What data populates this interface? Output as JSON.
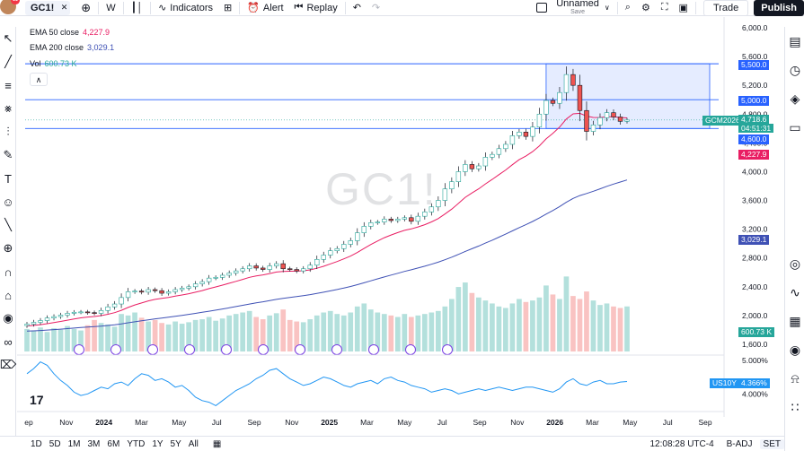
{
  "topbar": {
    "symbol": "GC1!",
    "avatar_badge": "11",
    "interval": "W",
    "indicators_label": "Indicators",
    "alert_label": "Alert",
    "replay_label": "Replay",
    "layout_name": "Unnamed",
    "layout_status": "Save",
    "trade_label": "Trade",
    "publish_label": "Publish"
  },
  "legend": {
    "ema50_label": "EMA 50 close",
    "ema50_value": "4,227.9",
    "ema200_label": "EMA 200 close",
    "ema200_value": "3,029.1",
    "vol_label": "Vol",
    "vol_value": "600.73 K"
  },
  "watermark": "GC1!",
  "tv_logo": "17",
  "colors": {
    "up": "#26a69a",
    "down": "#ef5350",
    "ema50": "#e91e63",
    "ema200": "#3f51b5",
    "hline": "#2962ff",
    "zone": "rgba(41,98,255,0.12)",
    "us10y": "#2196f3"
  },
  "chart_data": {
    "type": "candlestick",
    "x_labels": [
      "ep",
      "Nov",
      "2024",
      "Mar",
      "May",
      "Jul",
      "Sep",
      "Nov",
      "2025",
      "Mar",
      "May",
      "Jul",
      "Sep",
      "Nov",
      "2026",
      "Mar",
      "May",
      "Jul",
      "Sep"
    ],
    "y_ticks": [
      "6,000.0",
      "5,600.0",
      "5,200.0",
      "4,800.0",
      "4,400.0",
      "4,000.0",
      "3,600.0",
      "3,200.0",
      "2,800.0",
      "2,400.0",
      "2,000.0",
      "1,600.0"
    ],
    "y_ticks_values": [
      6000,
      5600,
      5200,
      4800,
      4400,
      4000,
      3600,
      3200,
      2800,
      2400,
      2000,
      1600
    ],
    "ylim": [
      1500,
      6050
    ],
    "horizontal_levels": [
      {
        "label": "5,500.0",
        "value": 5500
      },
      {
        "label": "5,000.0",
        "value": 5000
      },
      {
        "label": "4,600.0",
        "value": 4600
      }
    ],
    "current": {
      "contract": "GCM2026",
      "price": "4,718.6",
      "countdown": "04:51:31",
      "value": 4718.6
    },
    "ema50_tag": "4,227.9",
    "ema200_tag": "3,029.1",
    "vol_tag": "600.73 K",
    "closes": [
      1880,
      1905,
      1930,
      1965,
      1985,
      2005,
      2030,
      2045,
      2050,
      2040,
      2030,
      2070,
      2120,
      2160,
      2250,
      2330,
      2340,
      2325,
      2360,
      2345,
      2310,
      2330,
      2360,
      2380,
      2400,
      2440,
      2470,
      2520,
      2530,
      2560,
      2590,
      2620,
      2650,
      2690,
      2660,
      2640,
      2690,
      2720,
      2650,
      2640,
      2620,
      2650,
      2700,
      2780,
      2840,
      2900,
      2930,
      2990,
      3040,
      3150,
      3240,
      3290,
      3300,
      3340,
      3320,
      3340,
      3360,
      3310,
      3380,
      3440,
      3510,
      3600,
      3760,
      3860,
      4000,
      4100,
      4040,
      4080,
      4200,
      4240,
      4320,
      4380,
      4500,
      4550,
      4490,
      4620,
      4800,
      4990,
      4950,
      5100,
      5350,
      5200,
      4850,
      4560,
      4650,
      4750,
      4820,
      4760,
      4700,
      4718
    ],
    "volume_panel": {
      "ylim": [
        0,
        1100000
      ],
      "bars": [
        300000,
        280000,
        320000,
        260000,
        310000,
        290000,
        340000,
        300000,
        280000,
        350000,
        420000,
        380000,
        360000,
        330000,
        500000,
        480000,
        520000,
        450000,
        400000,
        420000,
        380000,
        360000,
        400000,
        370000,
        390000,
        420000,
        430000,
        460000,
        410000,
        440000,
        480000,
        500000,
        520000,
        540000,
        460000,
        430000,
        480000,
        510000,
        560000,
        420000,
        400000,
        390000,
        430000,
        480000,
        520000,
        540000,
        500000,
        480000,
        520000,
        600000,
        640000,
        560000,
        520000,
        500000,
        480000,
        460000,
        500000,
        460000,
        480000,
        500000,
        520000,
        540000,
        600000,
        700000,
        860000,
        920000,
        780000,
        720000,
        680000,
        640000,
        600000,
        580000,
        640000,
        700000,
        660000,
        680000,
        720000,
        880000,
        760000,
        700000,
        1000000,
        740000,
        700000,
        800000,
        680000,
        620000,
        640000,
        600000,
        580000,
        600730
      ]
    },
    "us10y_panel": {
      "label": "US10Y",
      "value": "4.366%",
      "y_ticks": [
        "5.000%",
        "4.000%"
      ],
      "y_ticks_values": [
        5.0,
        4.0
      ],
      "ylim": [
        3.5,
        5.1
      ],
      "values": [
        4.6,
        4.75,
        4.95,
        4.85,
        4.6,
        4.4,
        4.25,
        4.05,
        3.95,
        4.0,
        4.1,
        4.2,
        4.15,
        4.3,
        4.35,
        4.25,
        4.45,
        4.6,
        4.55,
        4.4,
        4.45,
        4.35,
        4.2,
        4.25,
        4.1,
        3.9,
        3.8,
        3.75,
        3.65,
        3.8,
        3.95,
        4.1,
        4.2,
        4.3,
        4.45,
        4.55,
        4.7,
        4.75,
        4.6,
        4.45,
        4.35,
        4.25,
        4.3,
        4.4,
        4.5,
        4.45,
        4.35,
        4.25,
        4.2,
        4.3,
        4.35,
        4.4,
        4.3,
        4.45,
        4.5,
        4.4,
        4.35,
        4.25,
        4.2,
        4.15,
        4.05,
        4.1,
        4.15,
        4.1,
        4.0,
        4.05,
        4.1,
        4.15,
        4.1,
        4.15,
        4.2,
        4.15,
        4.1,
        4.15,
        4.2,
        4.2,
        4.15,
        4.1,
        4.05,
        4.15,
        4.35,
        4.45,
        4.3,
        4.25,
        4.35,
        4.4,
        4.3,
        4.3,
        4.35,
        4.366
      ]
    }
  },
  "bottombar": {
    "ranges": [
      "1D",
      "5D",
      "1M",
      "3M",
      "6M",
      "YTD",
      "1Y",
      "5Y",
      "All"
    ],
    "time": "12:08:28 UTC-4",
    "adj": "B-ADJ",
    "session": "SET"
  }
}
